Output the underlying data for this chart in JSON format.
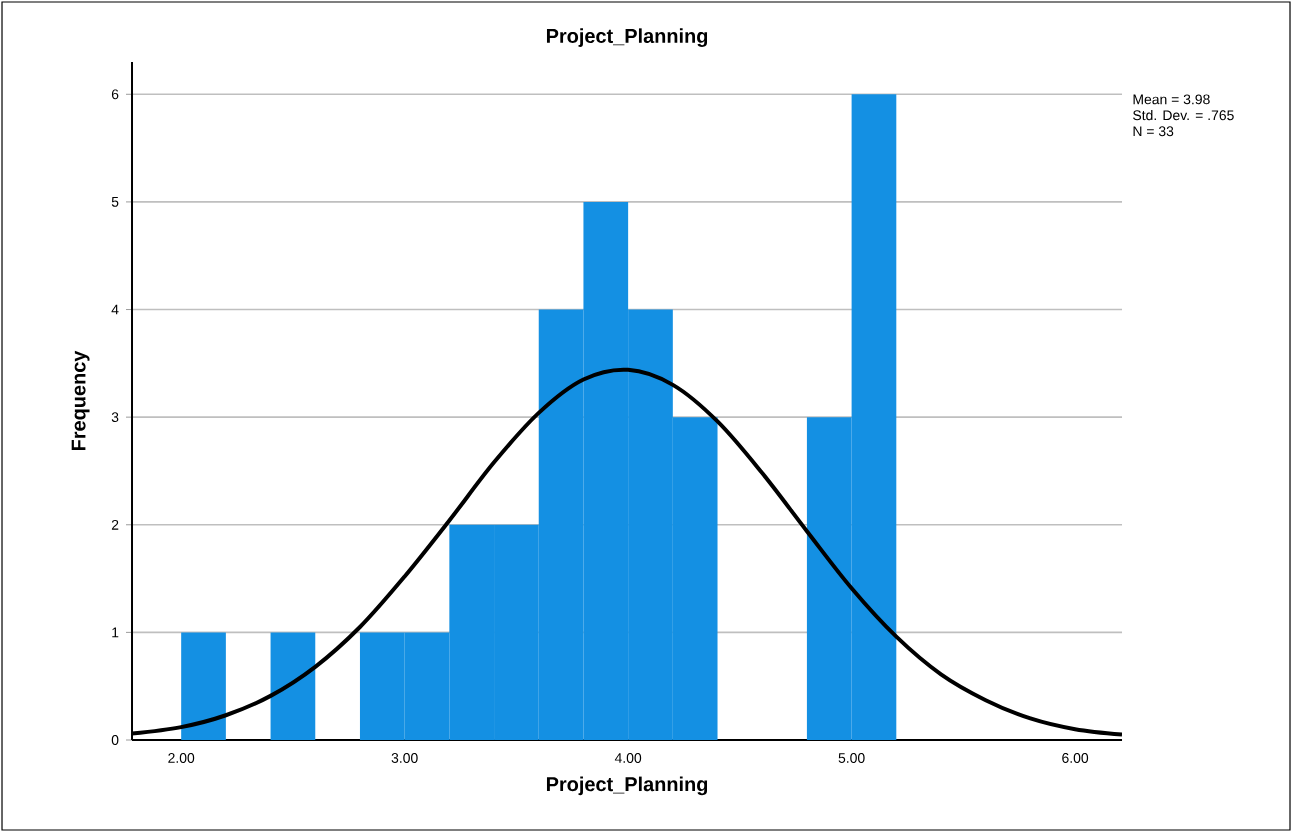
{
  "chart_data": {
    "type": "histogram",
    "title": "Project_Planning",
    "xlabel": "Project_Planning",
    "ylabel": "Frequency",
    "series": [
      {
        "bins": [
          2.0,
          2.2,
          2.4,
          2.6,
          2.8,
          3.0,
          3.2,
          3.4,
          3.6,
          3.8,
          4.0,
          4.2,
          4.4,
          4.6,
          4.8,
          5.0,
          5.2
        ],
        "values": [
          1,
          0,
          1,
          0,
          1,
          1,
          2,
          2,
          4,
          5,
          4,
          3,
          0,
          0,
          3,
          6
        ],
        "color": "#1490e3"
      },
      {
        "type": "line",
        "x": [
          1.78,
          2.0,
          2.2,
          2.4,
          2.6,
          2.8,
          3.0,
          3.2,
          3.4,
          3.6,
          3.8,
          4.0,
          4.2,
          4.4,
          4.6,
          4.8,
          5.0,
          5.2,
          5.4,
          5.6,
          5.8,
          6.0,
          6.21
        ],
        "values": [
          0.06,
          0.12,
          0.23,
          0.41,
          0.68,
          1.05,
          1.52,
          2.04,
          2.58,
          3.04,
          3.35,
          3.44,
          3.3,
          2.96,
          2.48,
          1.94,
          1.41,
          0.96,
          0.61,
          0.37,
          0.2,
          0.1,
          0.05
        ],
        "color": "#000000",
        "marker": "none",
        "line_style": "solid"
      }
    ],
    "xlim": [
      1.78,
      6.21
    ],
    "ylim": [
      0,
      6.3
    ],
    "xticks": [
      {
        "value": 2,
        "label": "2.00"
      },
      {
        "value": 3,
        "label": "3.00"
      },
      {
        "value": 4,
        "label": "4.00"
      },
      {
        "value": 5,
        "label": "5.00"
      },
      {
        "value": 6,
        "label": "6.00"
      }
    ],
    "yticks": [
      0,
      1,
      2,
      3,
      4,
      5,
      6
    ],
    "grid": "y",
    "annotations": [
      "Mean = 3.98",
      "Std. Dev. = .765",
      "N = 33"
    ]
  }
}
